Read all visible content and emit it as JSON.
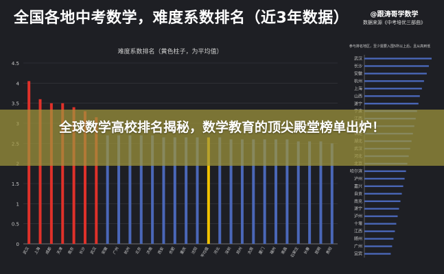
{
  "header": {
    "title": "全国各地中考数学，难度系数排名（近3年数据）",
    "brand": "@跟涛哥学数学",
    "source": "数据来源《中考培优三部曲》"
  },
  "banner": {
    "text": "全球数学高校排名揭秘，数学教育的顶尖殿堂榜单出炉！"
  },
  "colors": {
    "red": "#e0312a",
    "blue": "#4a67b8",
    "avg": "#f2c200",
    "grid": "#3a3b42",
    "axis_text": "#c8c8c8"
  },
  "chart_data": [
    {
      "type": "bar",
      "title": "难度系数排名（黄色柱子，为平均值）",
      "ylim": [
        0,
        4.5
      ],
      "yticks": [
        0,
        0.5,
        1,
        1.5,
        2,
        2.5,
        3,
        3.5,
        4,
        4.5
      ],
      "ytick_labels": [
        "0",
        "0.5",
        "1",
        "1.5",
        "2",
        "2.5",
        "3",
        "3.5",
        "4",
        "4.5"
      ],
      "categories": [
        "武汉",
        "上海",
        "成都",
        "天津",
        "南京",
        "长沙",
        "武汉",
        "安徽",
        "广州",
        "杭州",
        "北京",
        "济南",
        "西安",
        "合肥",
        "重庆",
        "沈阳",
        "平均值",
        "河北",
        "深圳",
        "郑州",
        "太原",
        "厦门",
        "福州",
        "南昌",
        "石家庄",
        "长春",
        "昆明",
        "贵阳"
      ],
      "visible_labels": [
        "武汉",
        "上海",
        "成都",
        "天津",
        "南京",
        "长沙",
        "武汉",
        "安徽",
        "广州",
        "杭州",
        "北京",
        "济南",
        "西安",
        "合肥",
        "重庆",
        "沈阳",
        "平均值",
        "河北",
        "深圳",
        "郑州",
        "太原",
        "厦门",
        "福州",
        "南昌",
        "石家庄",
        "长春",
        "昆明",
        "贵阳"
      ],
      "values": [
        4.05,
        3.6,
        3.5,
        3.5,
        3.4,
        3.3,
        3.15,
        2.7,
        2.7,
        2.7,
        2.7,
        2.7,
        2.65,
        2.65,
        2.65,
        2.65,
        2.65,
        2.65,
        2.6,
        2.6,
        2.6,
        2.6,
        2.6,
        2.6,
        2.55,
        2.55,
        2.55,
        2.5
      ],
      "colors": [
        "red",
        "red",
        "red",
        "red",
        "red",
        "red",
        "red",
        "blue",
        "blue",
        "blue",
        "blue",
        "blue",
        "blue",
        "blue",
        "blue",
        "blue",
        "avg",
        "blue",
        "blue",
        "blue",
        "blue",
        "blue",
        "blue",
        "blue",
        "blue",
        "blue",
        "blue",
        "blue"
      ]
    },
    {
      "type": "bar",
      "orientation": "horizontal",
      "title": "参与排名地区，至少需要入围5所以上后，且从高到低",
      "xlim": [
        0,
        1
      ],
      "categories": [
        "武汉",
        "长沙",
        "安徽",
        "杭州",
        "上海",
        "山西",
        "遂宁",
        "宁波",
        "江西",
        "成都",
        "福建",
        "湖北",
        "武汉",
        "河北",
        "北京",
        "哈尔滨",
        "泸州",
        "嘉兴",
        "自贡",
        "南充",
        "遂宁",
        "泸州",
        "十堰",
        "江西",
        "随州",
        "广州",
        "宜宾"
      ],
      "values": [
        0.97,
        0.93,
        0.9,
        0.86,
        0.83,
        0.8,
        0.78,
        0.76,
        0.74,
        0.72,
        0.7,
        0.68,
        0.66,
        0.64,
        0.62,
        0.6,
        0.58,
        0.56,
        0.54,
        0.52,
        0.5,
        0.48,
        0.46,
        0.44,
        0.42,
        0.4,
        0.38
      ]
    }
  ]
}
